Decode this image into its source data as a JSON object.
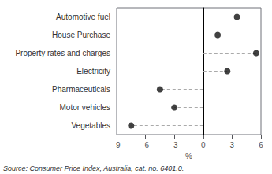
{
  "chart_data": {
    "type": "lollipop",
    "orientation": "horizontal",
    "categories": [
      "Automotive fuel",
      "House Purchase",
      "Property rates and charges",
      "Electricity",
      "Pharmaceuticals",
      "Motor vehicles",
      "Vegetables"
    ],
    "values": [
      3.5,
      1.5,
      5.5,
      2.5,
      -4.5,
      -3.0,
      -7.5
    ],
    "xlim": [
      -9,
      6
    ],
    "xticks": [
      -9,
      -6,
      -3,
      0,
      3,
      6
    ],
    "xlabel": "%",
    "annotations": [
      "Source: Consumer Price Index, Australia, cat. no. 6401.0."
    ],
    "color": "#111111",
    "line_style": "dashed",
    "grid": false
  }
}
